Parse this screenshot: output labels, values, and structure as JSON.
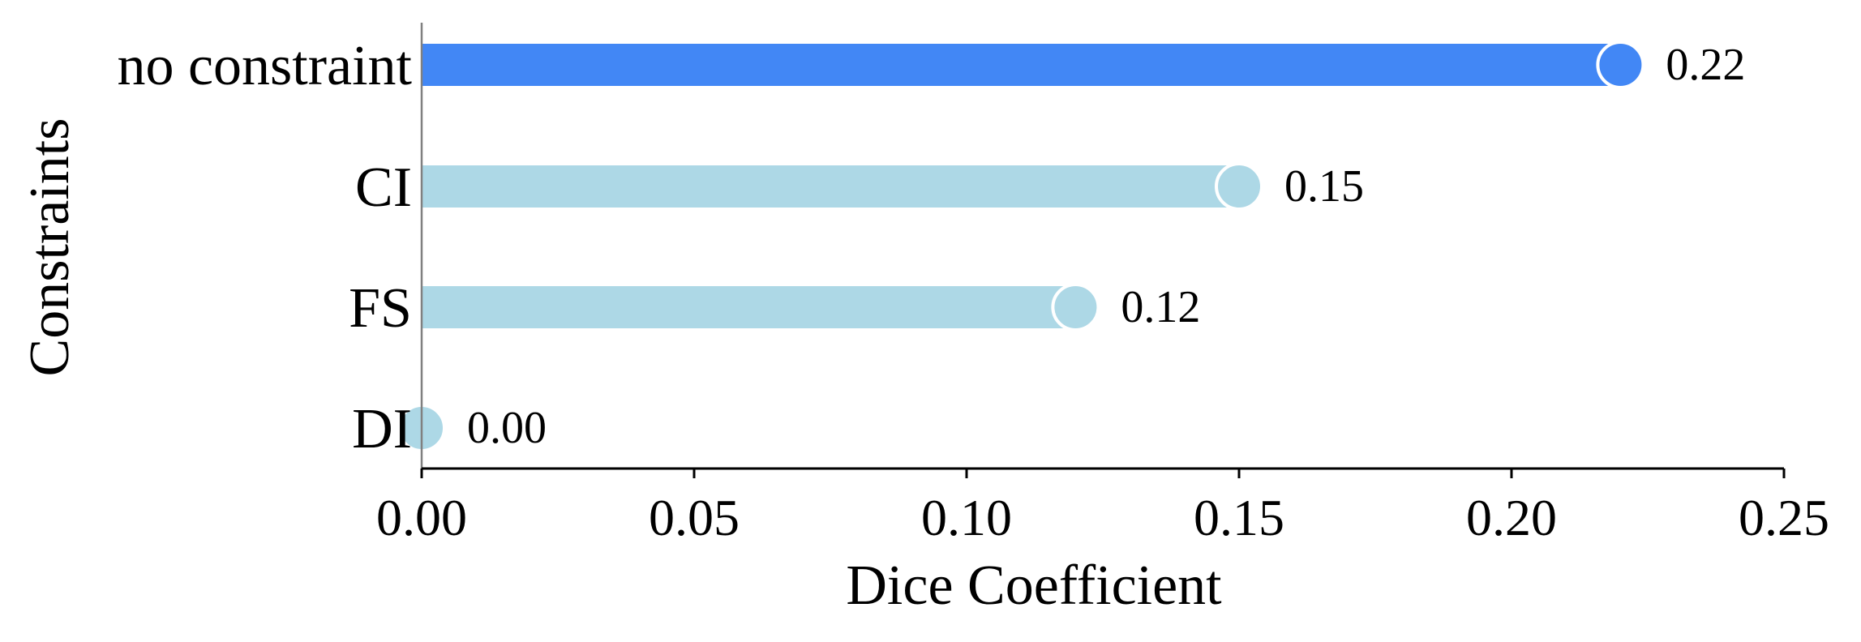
{
  "chart_data": {
    "type": "bar",
    "orientation": "horizontal",
    "categories": [
      "no constraint",
      "CI",
      "FS",
      "DI"
    ],
    "values": [
      0.22,
      0.15,
      0.12,
      0.0
    ],
    "value_labels": [
      "0.22",
      "0.15",
      "0.12",
      "0.00"
    ],
    "highlight_index": 0,
    "colors": {
      "highlight": "#4287f5",
      "default": "#add8e6"
    },
    "xlabel": "Dice Coefficient",
    "ylabel": "Constraints",
    "xlim": [
      0,
      0.25
    ],
    "xticks": [
      "0.00",
      "0.05",
      "0.10",
      "0.15",
      "0.20",
      "0.25"
    ],
    "grid": false,
    "legend": "none"
  }
}
